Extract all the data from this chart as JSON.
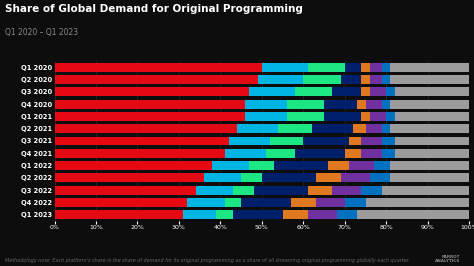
{
  "title": "Share of Global Demand for Original Programming",
  "subtitle": "Q1 2020 – Q1 2023",
  "categories": [
    "Q1 2020",
    "Q2 2020",
    "Q3 2020",
    "Q4 2020",
    "Q1 2021",
    "Q2 2021",
    "Q3 2021",
    "Q4 2021",
    "Q1 2022",
    "Q2 2022",
    "Q3 2022",
    "Q4 2022",
    "Q1 2023"
  ],
  "series": {
    "Netflix": [
      50,
      49,
      47,
      46,
      46,
      44,
      42,
      41,
      38,
      36,
      34,
      32,
      31
    ],
    "Amazon Prime Video": [
      11,
      11,
      11,
      10,
      10,
      10,
      10,
      10,
      9,
      9,
      9,
      9,
      8
    ],
    "Hulu": [
      9,
      9,
      9,
      9,
      9,
      8,
      8,
      7,
      6,
      5,
      5,
      4,
      4
    ],
    "Disney+": [
      4,
      5,
      7,
      8,
      9,
      10,
      11,
      12,
      13,
      13,
      13,
      12,
      12
    ],
    "Apple TV+": [
      2,
      2,
      2,
      2,
      2,
      3,
      3,
      4,
      5,
      6,
      6,
      6,
      6
    ],
    "HBO Max": [
      3,
      3,
      4,
      4,
      4,
      4,
      5,
      5,
      6,
      7,
      7,
      7,
      7
    ],
    "Paramount+": [
      2,
      2,
      2,
      2,
      2,
      2,
      3,
      3,
      4,
      5,
      5,
      5,
      5
    ],
    "Others": [
      19,
      19,
      18,
      19,
      18,
      19,
      18,
      18,
      19,
      19,
      21,
      25,
      27
    ]
  },
  "colors": {
    "Netflix": "#e50914",
    "Amazon Prime Video": "#00b4e4",
    "Hulu": "#1ce783",
    "Disney+": "#001f6b",
    "Apple TV+": "#e07820",
    "HBO Max": "#7030a0",
    "Paramount+": "#0070c0",
    "Others": "#9c9c9c"
  },
  "background_color": "#0d0d0d",
  "text_color": "#ffffff",
  "subtitle_color": "#888888",
  "xlim": [
    0,
    100
  ],
  "methodology": "Methodology note: Each platform’s share is the share of demand for its original programming as a share of all streaming original programming globally each quarter.",
  "title_fontsize": 7.5,
  "subtitle_fontsize": 5.5,
  "tick_fontsize": 4.5,
  "label_fontsize": 4.8,
  "legend_fontsize": 4.2,
  "methodology_fontsize": 3.5
}
